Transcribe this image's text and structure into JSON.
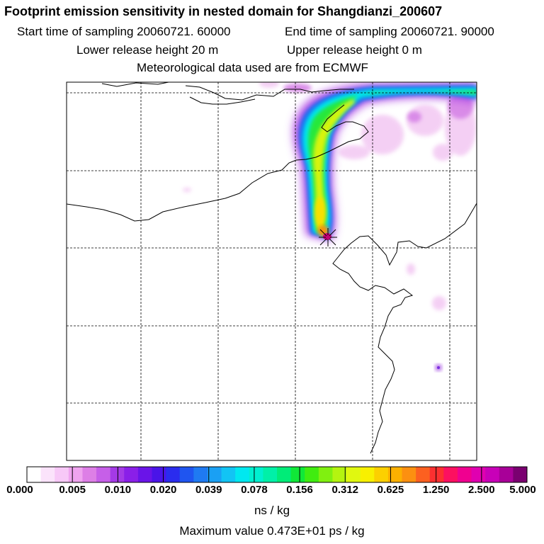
{
  "title": "Footprint emission sensitivity in nested domain for Shangdianzi_200607",
  "start_label": "Start time of sampling 20060721. 60000",
  "end_label": "End time of sampling 20060721. 90000",
  "lower_label": "Lower release height   20 m",
  "upper_label": "Upper release height    0 m",
  "met_label": "Meteorological data used are from ECMWF",
  "colorbar": {
    "ticks": [
      "0.000",
      "0.005",
      "0.010",
      "0.020",
      "0.039",
      "0.078",
      "0.156",
      "0.312",
      "0.625",
      "1.250",
      "2.500",
      "5.000"
    ],
    "colors": [
      "#ffffff",
      "#fbe3fb",
      "#f7c8f7",
      "#efa4ef",
      "#dd7fe6",
      "#c65fe8",
      "#a43ae6",
      "#8a1fe8",
      "#6a14e8",
      "#4a14e8",
      "#2a2cee",
      "#1f55f0",
      "#1f7af2",
      "#1aa0f4",
      "#12c4f4",
      "#00e8f0",
      "#00f0d0",
      "#00f0a8",
      "#00ec78",
      "#10e838",
      "#40ec10",
      "#80f010",
      "#b4f410",
      "#e0f810",
      "#f8f000",
      "#fcd000",
      "#fcb000",
      "#fc9010",
      "#fc6020",
      "#fc3030",
      "#fc1060",
      "#f00090",
      "#e000b0",
      "#c800b8",
      "#a80098",
      "#7a0070"
    ],
    "units": "ns / kg"
  },
  "max_value": "Maximum value  0.473E+01 ps / kg",
  "colors": {
    "coast": "#000000",
    "grid": "#000000"
  }
}
